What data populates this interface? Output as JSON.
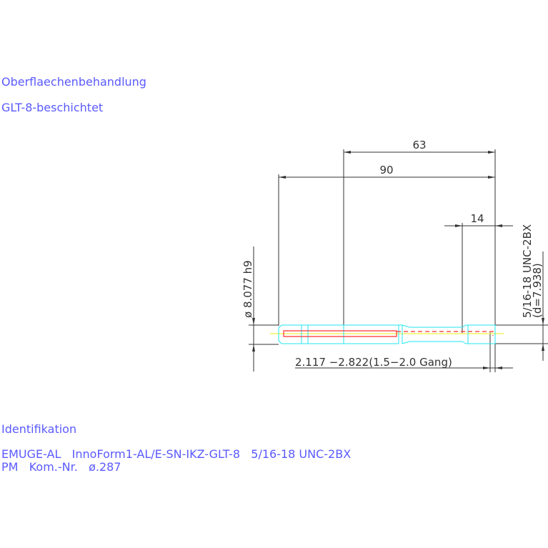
{
  "notes": {
    "surface_label": "Oberflaechenbehandlung",
    "surface_value": "GLT-8-beschichtet",
    "ident_label": "Identifikation",
    "ident_line1": "EMUGE-AL   InnoForm1-AL/E-SN-IKZ-GLT-8   5/16-18 UNC-2BX",
    "ident_line2": "PM   Kom.-Nr.   ø.287"
  },
  "dimensions": {
    "dim_63": "63",
    "dim_90": "90",
    "dim_14": "14",
    "shank_diameter": "ø 8.077 h9",
    "thread": "5/16-18 UNC-2BX",
    "thread_d": "(d=7.938)",
    "chamfer": "2.117 −2.822(1.5−2.0 Gang)"
  },
  "colors": {
    "text": "#5a5aff",
    "outline": "#22e5f0",
    "center": "#ff3030",
    "axis": "#f0f040",
    "dimension": "#333333"
  }
}
